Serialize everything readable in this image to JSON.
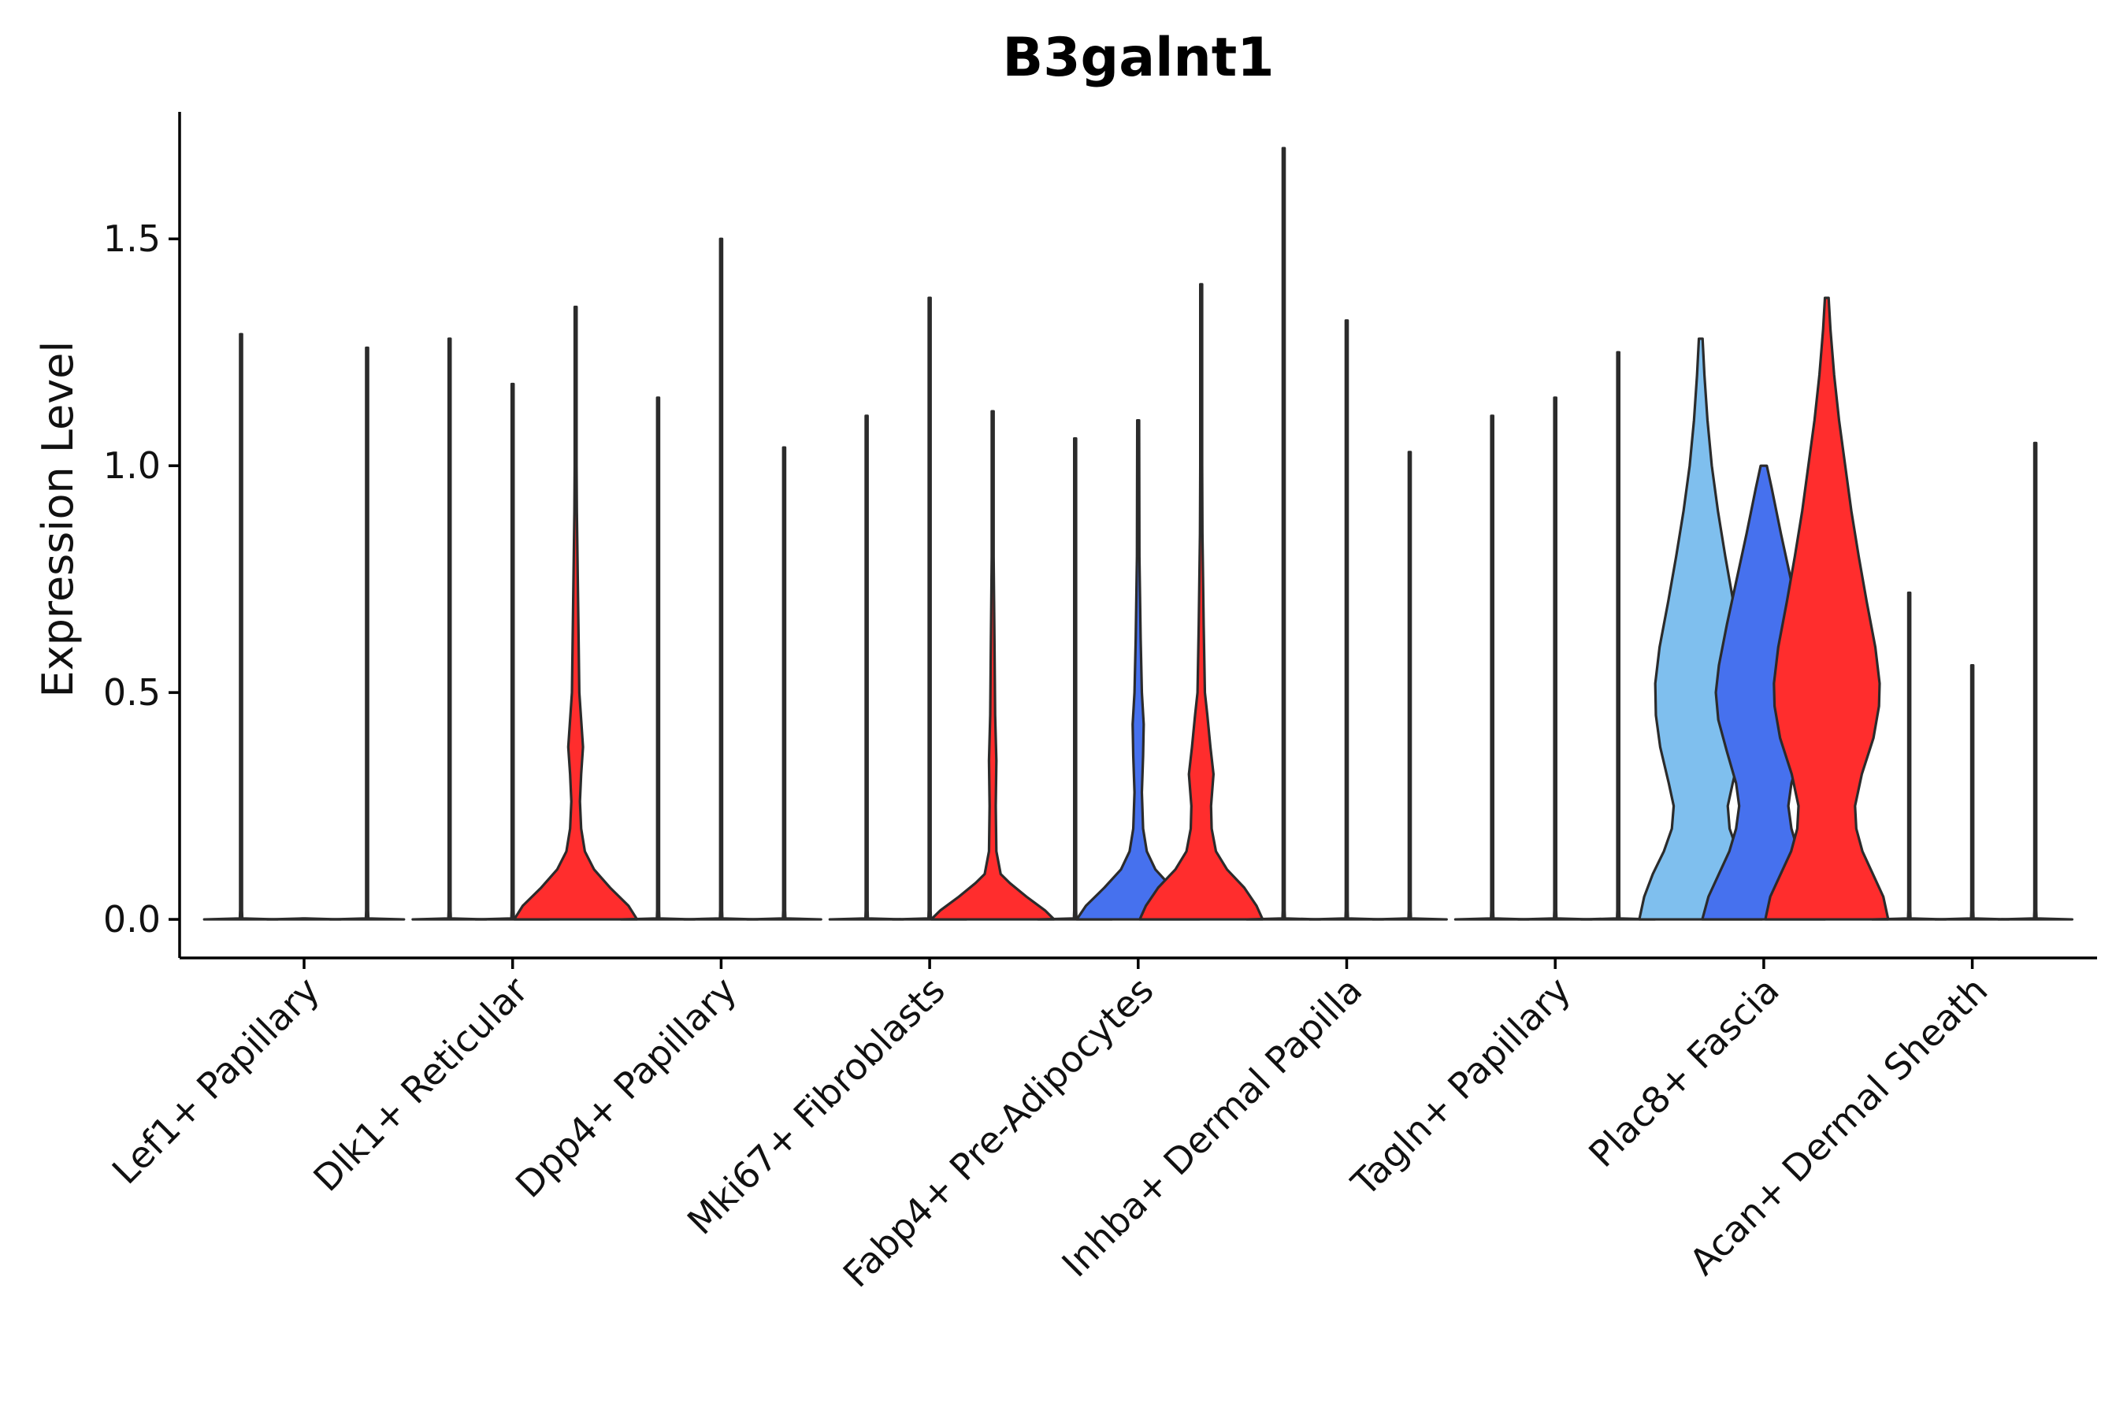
{
  "chart_data": {
    "type": "violin",
    "title": "B3galnt1",
    "xlabel": "",
    "ylabel": "Expression Level",
    "ylim": [
      -0.085,
      1.78
    ],
    "yticks": [
      "0.0",
      "0.5",
      "1.0",
      "1.5"
    ],
    "ytick_values": [
      0,
      0.5,
      1.0,
      1.5
    ],
    "categories": [
      "Lef1+ Papillary",
      "Dlk1+ Reticular",
      "Dpp4+ Papillary",
      "Mki67+ Fibroblasts",
      "Fabp4+ Pre-Adipocytes",
      "Inhba+ Dermal Papilla",
      "Tagln+ Papillary",
      "Plac8+ Fascia",
      "Acan+ Dermal Sheath"
    ],
    "series": [
      {
        "name": "group-1",
        "color": "#7fbfee"
      },
      {
        "name": "group-2",
        "color": "#4671ee"
      },
      {
        "name": "group-3",
        "color": "#ff2d2d"
      }
    ],
    "violins": [
      {
        "category": 0,
        "group": 0,
        "max": 1.29,
        "profile": [
          [
            0,
            0.6
          ],
          [
            0.002,
            0.02
          ],
          [
            0.02,
            0.004
          ],
          [
            1.29,
            0.004
          ]
        ]
      },
      {
        "category": 0,
        "group": 1,
        "max": 0.0,
        "profile": [
          [
            0,
            0.6
          ],
          [
            0.002,
            0.02
          ]
        ]
      },
      {
        "category": 0,
        "group": 2,
        "max": 1.26,
        "profile": [
          [
            0,
            0.6
          ],
          [
            0.002,
            0.02
          ],
          [
            0.02,
            0.004
          ],
          [
            1.26,
            0.004
          ]
        ]
      },
      {
        "category": 1,
        "group": 0,
        "max": 1.28,
        "profile": [
          [
            0,
            0.6
          ],
          [
            0.002,
            0.02
          ],
          [
            0.02,
            0.004
          ],
          [
            1.28,
            0.004
          ]
        ]
      },
      {
        "category": 1,
        "group": 1,
        "max": 1.18,
        "profile": [
          [
            0,
            0.6
          ],
          [
            0.002,
            0.02
          ],
          [
            0.02,
            0.004
          ],
          [
            1.18,
            0.004
          ]
        ]
      },
      {
        "category": 1,
        "group": 2,
        "max": 1.35,
        "profile": [
          [
            0,
            1.0
          ],
          [
            0.03,
            0.86
          ],
          [
            0.07,
            0.56
          ],
          [
            0.11,
            0.3
          ],
          [
            0.15,
            0.15
          ],
          [
            0.2,
            0.09
          ],
          [
            0.26,
            0.07
          ],
          [
            0.32,
            0.09
          ],
          [
            0.38,
            0.12
          ],
          [
            0.44,
            0.09
          ],
          [
            0.5,
            0.06
          ],
          [
            0.6,
            0.05
          ],
          [
            0.75,
            0.035
          ],
          [
            0.9,
            0.02
          ],
          [
            1.0,
            0.01
          ],
          [
            1.35,
            0.004
          ]
        ]
      },
      {
        "category": 2,
        "group": 0,
        "max": 1.15,
        "profile": [
          [
            0,
            0.6
          ],
          [
            0.002,
            0.02
          ],
          [
            0.02,
            0.004
          ],
          [
            1.15,
            0.004
          ]
        ]
      },
      {
        "category": 2,
        "group": 1,
        "max": 1.5,
        "profile": [
          [
            0,
            0.6
          ],
          [
            0.002,
            0.02
          ],
          [
            0.02,
            0.004
          ],
          [
            1.5,
            0.004
          ]
        ]
      },
      {
        "category": 2,
        "group": 2,
        "max": 1.04,
        "profile": [
          [
            0,
            0.6
          ],
          [
            0.002,
            0.02
          ],
          [
            0.02,
            0.004
          ],
          [
            1.04,
            0.004
          ]
        ]
      },
      {
        "category": 3,
        "group": 0,
        "max": 1.11,
        "profile": [
          [
            0,
            0.6
          ],
          [
            0.002,
            0.02
          ],
          [
            0.02,
            0.004
          ],
          [
            1.11,
            0.004
          ]
        ]
      },
      {
        "category": 3,
        "group": 1,
        "max": 1.37,
        "profile": [
          [
            0,
            0.6
          ],
          [
            0.002,
            0.02
          ],
          [
            0.02,
            0.004
          ],
          [
            1.37,
            0.004
          ]
        ]
      },
      {
        "category": 3,
        "group": 2,
        "max": 1.12,
        "profile": [
          [
            0,
            1.0
          ],
          [
            0.02,
            0.85
          ],
          [
            0.05,
            0.55
          ],
          [
            0.08,
            0.28
          ],
          [
            0.1,
            0.13
          ],
          [
            0.15,
            0.06
          ],
          [
            0.25,
            0.05
          ],
          [
            0.35,
            0.06
          ],
          [
            0.45,
            0.04
          ],
          [
            0.6,
            0.03
          ],
          [
            0.8,
            0.015
          ],
          [
            1.12,
            0.004
          ]
        ]
      },
      {
        "category": 4,
        "group": 0,
        "max": 1.06,
        "profile": [
          [
            0,
            0.6
          ],
          [
            0.002,
            0.02
          ],
          [
            0.02,
            0.004
          ],
          [
            1.06,
            0.004
          ]
        ]
      },
      {
        "category": 4,
        "group": 1,
        "max": 1.1,
        "profile": [
          [
            0,
            1.0
          ],
          [
            0.03,
            0.85
          ],
          [
            0.07,
            0.55
          ],
          [
            0.11,
            0.28
          ],
          [
            0.15,
            0.14
          ],
          [
            0.2,
            0.08
          ],
          [
            0.28,
            0.06
          ],
          [
            0.36,
            0.08
          ],
          [
            0.43,
            0.09
          ],
          [
            0.5,
            0.06
          ],
          [
            0.62,
            0.04
          ],
          [
            0.8,
            0.02
          ],
          [
            1.1,
            0.004
          ]
        ]
      },
      {
        "category": 4,
        "group": 2,
        "max": 1.4,
        "profile": [
          [
            0,
            1.0
          ],
          [
            0.03,
            0.9
          ],
          [
            0.07,
            0.7
          ],
          [
            0.11,
            0.42
          ],
          [
            0.15,
            0.24
          ],
          [
            0.2,
            0.17
          ],
          [
            0.25,
            0.16
          ],
          [
            0.32,
            0.2
          ],
          [
            0.38,
            0.15
          ],
          [
            0.45,
            0.1
          ],
          [
            0.5,
            0.06
          ],
          [
            0.65,
            0.04
          ],
          [
            0.85,
            0.02
          ],
          [
            1.0,
            0.01
          ],
          [
            1.4,
            0.004
          ]
        ]
      },
      {
        "category": 5,
        "group": 0,
        "max": 1.7,
        "profile": [
          [
            0,
            0.6
          ],
          [
            0.002,
            0.02
          ],
          [
            0.02,
            0.004
          ],
          [
            1.7,
            0.004
          ]
        ]
      },
      {
        "category": 5,
        "group": 1,
        "max": 1.32,
        "profile": [
          [
            0,
            0.6
          ],
          [
            0.002,
            0.02
          ],
          [
            0.02,
            0.004
          ],
          [
            1.32,
            0.004
          ]
        ]
      },
      {
        "category": 5,
        "group": 2,
        "max": 1.03,
        "profile": [
          [
            0,
            0.6
          ],
          [
            0.002,
            0.02
          ],
          [
            0.02,
            0.004
          ],
          [
            1.03,
            0.004
          ]
        ]
      },
      {
        "category": 6,
        "group": 0,
        "max": 1.11,
        "profile": [
          [
            0,
            0.6
          ],
          [
            0.002,
            0.02
          ],
          [
            0.02,
            0.004
          ],
          [
            1.11,
            0.004
          ]
        ]
      },
      {
        "category": 6,
        "group": 1,
        "max": 1.15,
        "profile": [
          [
            0,
            0.6
          ],
          [
            0.002,
            0.02
          ],
          [
            0.02,
            0.004
          ],
          [
            1.15,
            0.004
          ]
        ]
      },
      {
        "category": 6,
        "group": 2,
        "max": 1.25,
        "profile": [
          [
            0,
            0.6
          ],
          [
            0.002,
            0.02
          ],
          [
            0.02,
            0.004
          ],
          [
            1.25,
            0.004
          ]
        ]
      },
      {
        "category": 7,
        "group": 0,
        "max": 1.28,
        "profile": [
          [
            0,
            1.0
          ],
          [
            0.05,
            0.92
          ],
          [
            0.1,
            0.78
          ],
          [
            0.15,
            0.6
          ],
          [
            0.2,
            0.47
          ],
          [
            0.25,
            0.44
          ],
          [
            0.3,
            0.52
          ],
          [
            0.38,
            0.66
          ],
          [
            0.45,
            0.73
          ],
          [
            0.52,
            0.74
          ],
          [
            0.6,
            0.67
          ],
          [
            0.7,
            0.53
          ],
          [
            0.8,
            0.4
          ],
          [
            0.9,
            0.28
          ],
          [
            1.0,
            0.18
          ],
          [
            1.1,
            0.11
          ],
          [
            1.2,
            0.06
          ],
          [
            1.28,
            0.03
          ]
        ]
      },
      {
        "category": 7,
        "group": 1,
        "max": 1.0,
        "profile": [
          [
            0,
            1.0
          ],
          [
            0.05,
            0.9
          ],
          [
            0.1,
            0.73
          ],
          [
            0.15,
            0.56
          ],
          [
            0.2,
            0.45
          ],
          [
            0.25,
            0.4
          ],
          [
            0.3,
            0.45
          ],
          [
            0.37,
            0.6
          ],
          [
            0.44,
            0.74
          ],
          [
            0.5,
            0.78
          ],
          [
            0.56,
            0.73
          ],
          [
            0.65,
            0.6
          ],
          [
            0.75,
            0.44
          ],
          [
            0.85,
            0.28
          ],
          [
            0.95,
            0.13
          ],
          [
            1.0,
            0.05
          ]
        ]
      },
      {
        "category": 7,
        "group": 2,
        "max": 1.37,
        "profile": [
          [
            0,
            1.0
          ],
          [
            0.05,
            0.92
          ],
          [
            0.1,
            0.75
          ],
          [
            0.15,
            0.58
          ],
          [
            0.2,
            0.48
          ],
          [
            0.25,
            0.46
          ],
          [
            0.32,
            0.57
          ],
          [
            0.4,
            0.76
          ],
          [
            0.47,
            0.85
          ],
          [
            0.52,
            0.86
          ],
          [
            0.6,
            0.79
          ],
          [
            0.7,
            0.65
          ],
          [
            0.8,
            0.52
          ],
          [
            0.9,
            0.4
          ],
          [
            1.0,
            0.3
          ],
          [
            1.1,
            0.2
          ],
          [
            1.2,
            0.12
          ],
          [
            1.3,
            0.06
          ],
          [
            1.37,
            0.03
          ]
        ]
      },
      {
        "category": 8,
        "group": 0,
        "max": 0.72,
        "profile": [
          [
            0,
            0.6
          ],
          [
            0.002,
            0.02
          ],
          [
            0.02,
            0.004
          ],
          [
            0.72,
            0.004
          ]
        ]
      },
      {
        "category": 8,
        "group": 1,
        "max": 0.56,
        "profile": [
          [
            0,
            0.6
          ],
          [
            0.002,
            0.02
          ],
          [
            0.02,
            0.004
          ],
          [
            0.56,
            0.004
          ]
        ]
      },
      {
        "category": 8,
        "group": 2,
        "max": 1.05,
        "profile": [
          [
            0,
            0.6
          ],
          [
            0.002,
            0.02
          ],
          [
            0.02,
            0.004
          ],
          [
            1.05,
            0.004
          ]
        ]
      }
    ]
  }
}
